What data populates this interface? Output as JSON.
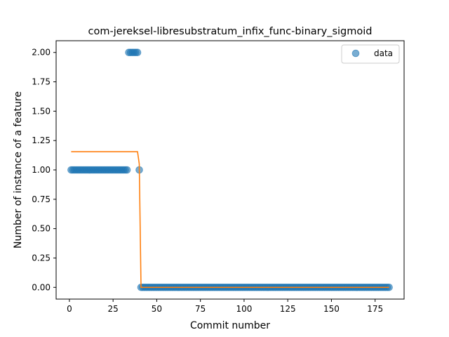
{
  "chart_data": {
    "type": "scatter",
    "title": "com-jereksel-libresubstratum_infix_func-binary_sigmoid",
    "xlabel": "Commit number",
    "ylabel": "Number of instance of a feature",
    "xlim": [
      -7.6,
      191.6
    ],
    "ylim": [
      -0.1,
      2.1
    ],
    "xticks": [
      0,
      25,
      50,
      75,
      100,
      125,
      150,
      175
    ],
    "yticks": [
      0.0,
      0.25,
      0.5,
      0.75,
      1.0,
      1.25,
      1.5,
      1.75,
      2.0
    ],
    "xtick_labels": [
      "0",
      "25",
      "50",
      "75",
      "100",
      "125",
      "150",
      "175"
    ],
    "ytick_labels": [
      "0.00",
      "0.25",
      "0.50",
      "0.75",
      "1.00",
      "1.25",
      "1.50",
      "1.75",
      "2.00"
    ],
    "grid": false,
    "legend": {
      "position": "top-right",
      "entries": [
        "data"
      ]
    },
    "series": [
      {
        "name": "data",
        "kind": "scatter",
        "color": "#1f77b4",
        "segments": [
          {
            "x_start": 1,
            "x_end": 33,
            "y": 1.0
          },
          {
            "x_start": 34,
            "x_end": 39,
            "y": 2.0
          },
          {
            "x_start": 40,
            "x_end": 40,
            "y": 1.0
          },
          {
            "x_start": 41,
            "x_end": 183,
            "y": 0.0
          }
        ]
      },
      {
        "kind": "line",
        "color": "#ff7f0e",
        "points": [
          [
            1,
            1.155
          ],
          [
            39,
            1.155
          ],
          [
            40,
            1.05
          ],
          [
            41,
            0.0
          ],
          [
            183,
            0.0
          ]
        ]
      }
    ]
  }
}
